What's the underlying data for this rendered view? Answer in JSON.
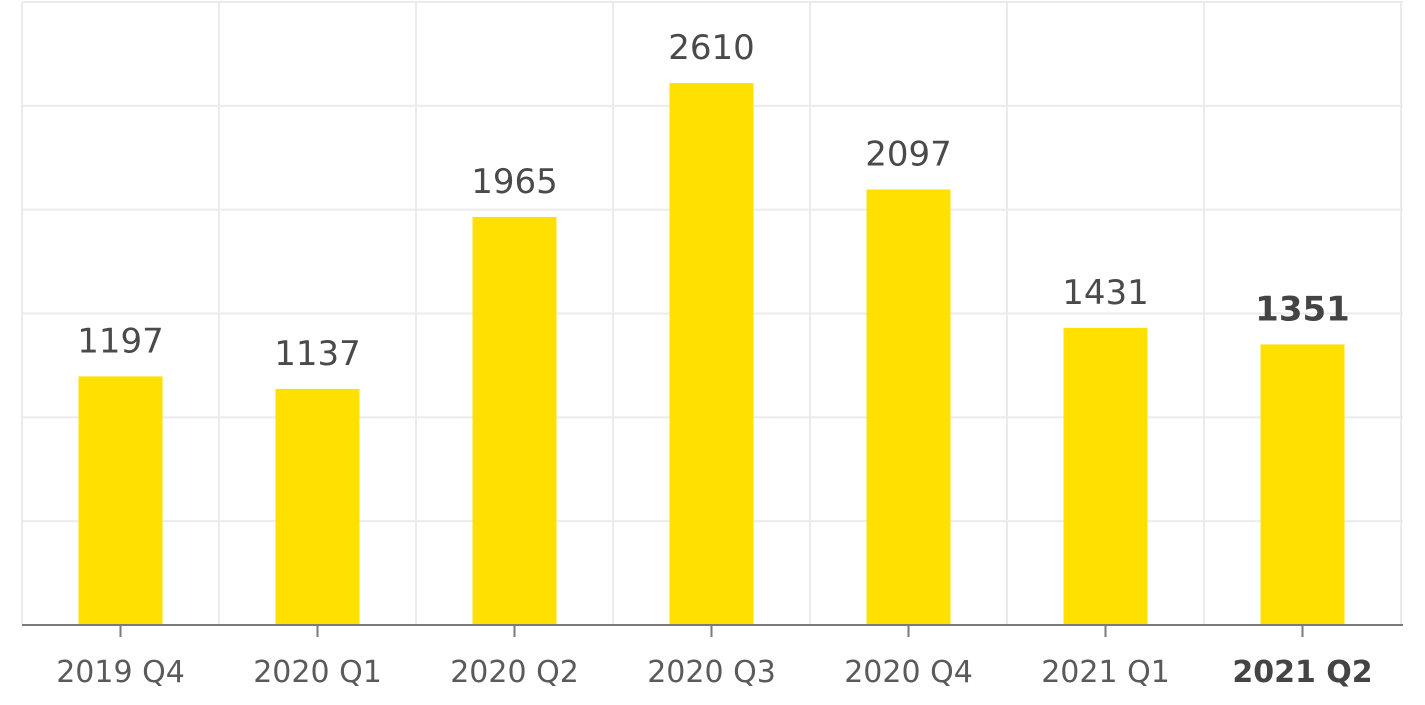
{
  "chart_data": {
    "type": "bar",
    "categories": [
      "2019 Q4",
      "2020 Q1",
      "2020 Q2",
      "2020 Q3",
      "2020 Q4",
      "2021 Q1",
      "2021 Q2"
    ],
    "values": [
      1197,
      1137,
      1965,
      2610,
      2097,
      1431,
      1351
    ],
    "value_labels": [
      "1197",
      "1137",
      "1965",
      "2610",
      "2097",
      "1431",
      "1351"
    ],
    "highlighted_category": "2021 Q2",
    "ylim": [
      0,
      3000
    ],
    "y_gridlines": [
      0,
      500,
      1000,
      1500,
      2000,
      2500,
      3000
    ],
    "title": "",
    "xlabel": "",
    "ylabel": "",
    "grid": true,
    "legend": "none",
    "bar_color": "#FFE000"
  }
}
